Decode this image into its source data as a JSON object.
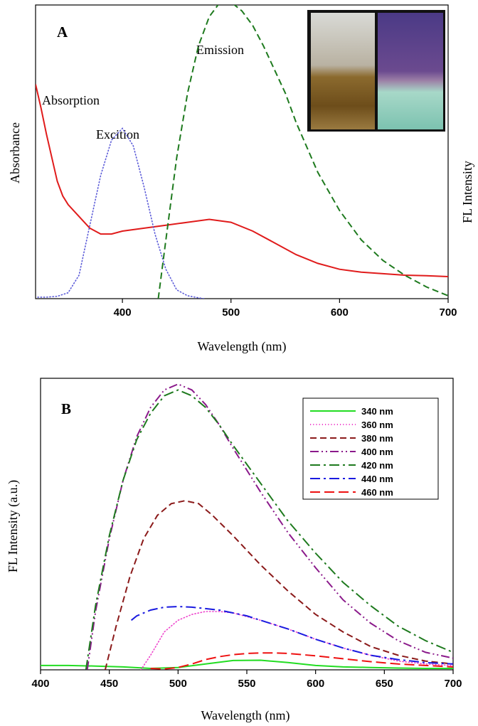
{
  "chart_data": [
    {
      "panel": "A",
      "type": "line",
      "panel_label": "A",
      "xlabel": "Wavelength (nm)",
      "ylabel_left": "Absorbance",
      "ylabel_right": "FL Intensity",
      "xlim": [
        320,
        700
      ],
      "ylim": [
        0,
        100
      ],
      "xticks": [
        400,
        500,
        600,
        700
      ],
      "tick_labels": [
        "400",
        "500",
        "600",
        "700"
      ],
      "legend": "none",
      "grid": false,
      "inset": "photo of two vials (daylight and UV)",
      "annotations": [
        "Absorption",
        "Excition",
        "Emission"
      ],
      "series": [
        {
          "label": "Absorption",
          "style": "solid",
          "color": "#e01b1b",
          "x": [
            320,
            325,
            330,
            335,
            340,
            345,
            350,
            360,
            370,
            380,
            390,
            400,
            420,
            440,
            460,
            480,
            500,
            520,
            540,
            560,
            580,
            600,
            620,
            640,
            660,
            680,
            700
          ],
          "y": [
            73,
            65,
            56,
            48,
            40,
            35,
            32,
            28,
            24,
            22,
            22,
            23,
            24,
            25,
            26,
            27,
            26,
            23,
            19,
            15,
            12,
            10,
            9,
            8.5,
            8,
            7.8,
            7.5
          ]
        },
        {
          "label": "Excition",
          "style": "dotted",
          "color": "#5a5ad8",
          "x": [
            322,
            330,
            340,
            350,
            360,
            370,
            380,
            390,
            400,
            410,
            420,
            430,
            440,
            450,
            460,
            470,
            475
          ],
          "y": [
            0.5,
            0.5,
            0.8,
            2,
            8,
            25,
            42,
            54,
            58,
            52,
            38,
            22,
            10,
            3,
            1,
            0.3,
            0
          ]
        },
        {
          "label": "Emission",
          "style": "dashed",
          "color": "#1e7a1e",
          "x": [
            433,
            440,
            450,
            460,
            470,
            480,
            490,
            500,
            510,
            520,
            530,
            540,
            550,
            560,
            580,
            600,
            620,
            640,
            660,
            680,
            700
          ],
          "y": [
            0,
            20,
            48,
            70,
            86,
            96,
            101,
            101,
            98,
            93,
            86,
            78,
            70,
            60,
            43,
            30,
            20,
            13,
            8,
            4,
            1
          ]
        }
      ]
    },
    {
      "panel": "B",
      "type": "line",
      "panel_label": "B",
      "xlabel": "Wavelength (nm)",
      "ylabel": "FL Intensity (a.u.)",
      "xlim": [
        400,
        700
      ],
      "ylim": [
        0,
        100
      ],
      "xticks": [
        400,
        450,
        500,
        550,
        600,
        650,
        700
      ],
      "tick_labels": [
        "400",
        "450",
        "500",
        "550",
        "600",
        "650",
        "700"
      ],
      "legend": "top-right",
      "grid": false,
      "series": [
        {
          "name": "340 nm",
          "style": "solid",
          "color": "#22dd22",
          "x": [
            400,
            420,
            440,
            460,
            480,
            500,
            520,
            540,
            560,
            580,
            600,
            620,
            640,
            660,
            680,
            700
          ],
          "y": [
            1.5,
            1.5,
            1.3,
            1,
            0.5,
            0.8,
            2,
            3.2,
            3.3,
            2.5,
            1.5,
            1,
            0.8,
            0.6,
            0.5,
            0.5
          ]
        },
        {
          "name": "360 nm",
          "style": "dotted",
          "color": "#ee44cc",
          "x": [
            473,
            480,
            490,
            500,
            510,
            520,
            530,
            540,
            560,
            580,
            600,
            620,
            640,
            660,
            680,
            700
          ],
          "y": [
            0,
            5,
            13,
            17,
            19,
            20,
            20,
            19.5,
            17,
            14,
            10.5,
            7.5,
            5,
            3,
            2,
            1.5
          ]
        },
        {
          "name": "380 nm",
          "style": "dashed",
          "color": "#8b1a1a",
          "x": [
            447,
            455,
            465,
            475,
            485,
            495,
            505,
            515,
            525,
            540,
            560,
            580,
            600,
            620,
            640,
            660,
            680,
            700
          ],
          "y": [
            0,
            15,
            32,
            45,
            53,
            57,
            58,
            57,
            53,
            46,
            36,
            27,
            19,
            13,
            8,
            5,
            3,
            2
          ]
        },
        {
          "name": "400 nm",
          "style": "dash-dot-dot",
          "color": "#8b1a8b",
          "x": [
            434,
            440,
            450,
            460,
            470,
            480,
            490,
            500,
            510,
            520,
            530,
            540,
            560,
            580,
            600,
            620,
            640,
            660,
            680,
            700
          ],
          "y": [
            0,
            20,
            45,
            65,
            80,
            90,
            96,
            98,
            96,
            91,
            84,
            76,
            61,
            47,
            35,
            24,
            16,
            10,
            6,
            4
          ]
        },
        {
          "name": "420 nm",
          "style": "dash-dot",
          "color": "#1e7a1e",
          "x": [
            433,
            440,
            450,
            460,
            470,
            480,
            490,
            500,
            510,
            520,
            530,
            540,
            560,
            580,
            600,
            620,
            640,
            660,
            680,
            700
          ],
          "y": [
            0,
            22,
            46,
            65,
            79,
            88,
            94,
            96,
            94,
            90,
            84,
            77,
            64,
            51,
            40,
            30,
            22,
            15,
            10,
            6
          ]
        },
        {
          "name": "440 nm",
          "style": "dash-dot",
          "color": "#1a1ae0",
          "x": [
            466,
            470,
            480,
            490,
            500,
            510,
            520,
            530,
            540,
            550,
            560,
            580,
            600,
            620,
            640,
            660,
            680,
            700
          ],
          "y": [
            17,
            18.5,
            20.5,
            21.5,
            21.7,
            21.5,
            21,
            20.5,
            19.5,
            18.5,
            17,
            14,
            10.5,
            7.5,
            5,
            3.5,
            2.5,
            2
          ]
        },
        {
          "name": "460 nm",
          "style": "long-dash",
          "color": "#ee1111",
          "x": [
            480,
            490,
            500,
            510,
            520,
            530,
            540,
            550,
            560,
            570,
            580,
            600,
            620,
            640,
            660,
            680,
            700
          ],
          "y": [
            0.5,
            0.3,
            0.8,
            2,
            3.5,
            4.5,
            5.2,
            5.6,
            5.8,
            5.8,
            5.6,
            4.8,
            3.8,
            2.8,
            2,
            1.5,
            1
          ]
        }
      ]
    }
  ]
}
